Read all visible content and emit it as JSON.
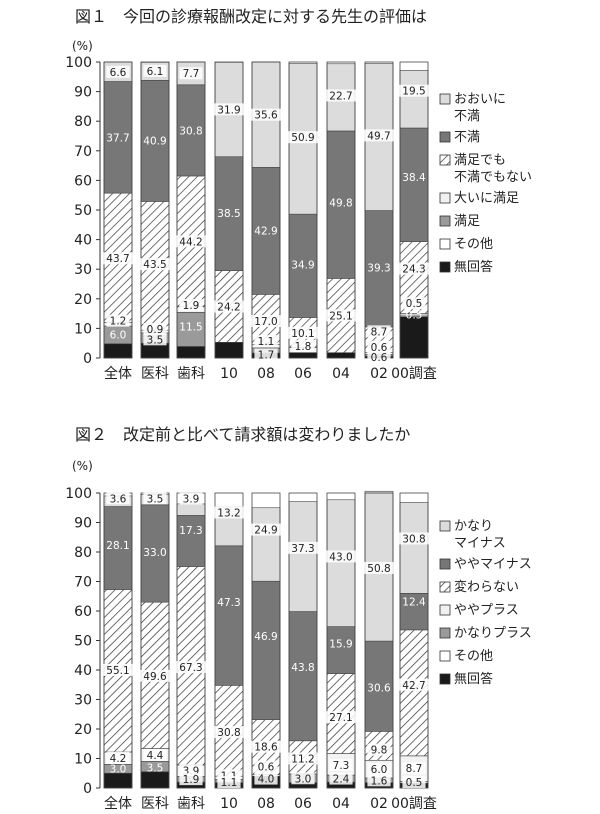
{
  "chart_data": [
    {
      "type": "bar",
      "title": "図１　今回の診療報酬改定に対する先生の評価は",
      "unit": "(%)",
      "categories": [
        "全体",
        "医科",
        "歯科",
        "10",
        "08",
        "06",
        "04",
        "02",
        "00調査"
      ],
      "ylim": [
        0,
        100
      ],
      "yticks": [
        0,
        10,
        20,
        30,
        40,
        50,
        60,
        70,
        80,
        90,
        100
      ],
      "legend_position": "right",
      "series": [
        {
          "name": "無回答",
          "color": "#1a1a1a",
          "pattern": "solid",
          "values": [
            4.8,
            5.0,
            3.9,
            5.3,
            1.7,
            1.8,
            1.8,
            0.6,
            14.0
          ]
        },
        {
          "name": "その他",
          "color": "#ffffff",
          "pattern": "solid",
          "values": [
            0,
            0,
            0,
            0,
            0,
            0,
            0,
            0,
            0.5
          ]
        },
        {
          "name": "満足",
          "color": "#9a9a9a",
          "pattern": "solid",
          "values": [
            6.0,
            3.5,
            11.5,
            0,
            1.7,
            0,
            0,
            0.6,
            0
          ]
        },
        {
          "name": "大いに満足",
          "color": "#f2f2f2",
          "pattern": "solid",
          "values": [
            1.2,
            0.9,
            1.9,
            0,
            1.1,
            1.8,
            0,
            0.6,
            0.5
          ]
        },
        {
          "name": "満足でも\n不満でもない",
          "color": "#ffffff",
          "pattern": "hatch",
          "values": [
            43.7,
            43.5,
            44.2,
            24.2,
            17.0,
            10.1,
            25.1,
            8.7,
            24.3
          ]
        },
        {
          "name": "不満",
          "color": "#777777",
          "pattern": "solid",
          "values": [
            37.7,
            40.9,
            30.8,
            38.5,
            42.9,
            34.9,
            49.8,
            39.3,
            38.4
          ]
        },
        {
          "name": "おおいに\n不満",
          "color": "#dcdcdc",
          "pattern": "solid",
          "values": [
            6.6,
            6.1,
            7.7,
            31.9,
            35.6,
            50.9,
            22.7,
            49.7,
            19.5
          ]
        }
      ],
      "data_labels": [
        {
          "bar": 0,
          "text": "6.6",
          "y": 96.7,
          "dark": false
        },
        {
          "bar": 1,
          "text": "6.1",
          "y": 97.0,
          "dark": false
        },
        {
          "bar": 2,
          "text": "7.7",
          "y": 96.2,
          "dark": false
        },
        {
          "bar": 3,
          "text": "31.9",
          "y": 84.0,
          "dark": false
        },
        {
          "bar": 4,
          "text": "35.6",
          "y": 82.2,
          "dark": false
        },
        {
          "bar": 5,
          "text": "50.9",
          "y": 74.6,
          "dark": false
        },
        {
          "bar": 6,
          "text": "22.7",
          "y": 88.7,
          "dark": false
        },
        {
          "bar": 7,
          "text": "49.7",
          "y": 75.2,
          "dark": false
        },
        {
          "bar": 8,
          "text": "19.5",
          "y": 90.3,
          "dark": false
        },
        {
          "bar": 0,
          "text": "37.7",
          "y": 74.5,
          "dark": true
        },
        {
          "bar": 1,
          "text": "40.9",
          "y": 73.4,
          "dark": true
        },
        {
          "bar": 2,
          "text": "30.8",
          "y": 76.9,
          "dark": true
        },
        {
          "bar": 3,
          "text": "38.5",
          "y": 49.0,
          "dark": true
        },
        {
          "bar": 4,
          "text": "42.9",
          "y": 43.0,
          "dark": true
        },
        {
          "bar": 5,
          "text": "34.9",
          "y": 31.6,
          "dark": true
        },
        {
          "bar": 6,
          "text": "49.8",
          "y": 52.6,
          "dark": true
        },
        {
          "bar": 7,
          "text": "39.3",
          "y": 30.5,
          "dark": true
        },
        {
          "bar": 8,
          "text": "38.4",
          "y": 61.2,
          "dark": true
        },
        {
          "bar": 0,
          "text": "43.7",
          "y": 33.7,
          "dark": false
        },
        {
          "bar": 1,
          "text": "43.5",
          "y": 31.7,
          "dark": false
        },
        {
          "bar": 2,
          "text": "44.2",
          "y": 39.4,
          "dark": false
        },
        {
          "bar": 3,
          "text": "24.2",
          "y": 17.4,
          "dark": false
        },
        {
          "bar": 4,
          "text": "17.0",
          "y": 12.5,
          "dark": false
        },
        {
          "bar": 5,
          "text": "10.1",
          "y": 8.5,
          "dark": false
        },
        {
          "bar": 6,
          "text": "25.1",
          "y": 14.4,
          "dark": false
        },
        {
          "bar": 7,
          "text": "8.7",
          "y": 9.0,
          "dark": false
        },
        {
          "bar": 8,
          "text": "24.3",
          "y": 30.2,
          "dark": false
        },
        {
          "bar": 0,
          "text": "1.2",
          "y": 12.6,
          "dark": false
        },
        {
          "bar": 1,
          "text": "0.9",
          "y": 9.8,
          "dark": false
        },
        {
          "bar": 2,
          "text": "1.9",
          "y": 17.9,
          "dark": false
        },
        {
          "bar": 4,
          "text": "1.1",
          "y": 5.7,
          "dark": false
        },
        {
          "bar": 5,
          "text": "1.8",
          "y": 4.1,
          "dark": false
        },
        {
          "bar": 7,
          "text": "0.6",
          "y": 3.8,
          "dark": false
        },
        {
          "bar": 8,
          "text": "0.5",
          "y": 18.5,
          "dark": false
        },
        {
          "bar": 0,
          "text": "6.0",
          "y": 8.0,
          "dark": true
        },
        {
          "bar": 1,
          "text": "3.5",
          "y": 6.3,
          "dark": false
        },
        {
          "bar": 2,
          "text": "11.5",
          "y": 10.6,
          "dark": true
        },
        {
          "bar": 4,
          "text": "1.7",
          "y": 1.2,
          "dark": false
        },
        {
          "bar": 7,
          "text": "0.6",
          "y": 0.3,
          "dark": false
        },
        {
          "bar": 8,
          "text": "0.5",
          "y": 14.7,
          "dark": true
        }
      ]
    },
    {
      "type": "bar",
      "title": "図２　改定前と比べて請求額は変わりましたか",
      "unit": "(%)",
      "categories": [
        "全体",
        "医科",
        "歯科",
        "10",
        "08",
        "06",
        "04",
        "02",
        "00調査"
      ],
      "ylim": [
        0,
        100
      ],
      "yticks": [
        0,
        10,
        20,
        30,
        40,
        50,
        60,
        70,
        80,
        90,
        100
      ],
      "legend_position": "right",
      "series": [
        {
          "name": "無回答",
          "color": "#1a1a1a",
          "pattern": "solid",
          "values": [
            5.0,
            5.5,
            2.0,
            1.8,
            4.0,
            1.8,
            2.0,
            1.8,
            1.7
          ]
        },
        {
          "name": "その他",
          "color": "#ffffff",
          "pattern": "solid",
          "values": [
            0,
            0,
            0,
            0,
            0,
            0,
            0,
            0,
            0.5
          ]
        },
        {
          "name": "かなりプラス",
          "color": "#9a9a9a",
          "pattern": "solid",
          "values": [
            3.0,
            3.5,
            1.9,
            1.1,
            0,
            3.0,
            2.4,
            1.6,
            0
          ]
        },
        {
          "name": "ややプラス",
          "color": "#f2f2f2",
          "pattern": "solid",
          "values": [
            4.2,
            4.4,
            3.9,
            1.1,
            0.6,
            0,
            7.3,
            6.0,
            8.7
          ]
        },
        {
          "name": "変わらない",
          "color": "#ffffff",
          "pattern": "hatch",
          "values": [
            55.1,
            49.6,
            67.3,
            30.8,
            18.6,
            11.2,
            27.1,
            9.8,
            42.7
          ]
        },
        {
          "name": "ややマイナス",
          "color": "#777777",
          "pattern": "solid",
          "values": [
            28.1,
            33.0,
            17.3,
            47.3,
            46.9,
            43.8,
            15.9,
            30.6,
            12.4
          ]
        },
        {
          "name": "かなり\nマイナス",
          "color": "#dcdcdc",
          "pattern": "solid",
          "values": [
            3.6,
            3.5,
            3.9,
            13.2,
            24.9,
            37.3,
            43.0,
            50.8,
            30.8
          ]
        }
      ],
      "data_labels": [
        {
          "bar": 0,
          "text": "3.6",
          "y": 98.2,
          "dark": false
        },
        {
          "bar": 1,
          "text": "3.5",
          "y": 98.2,
          "dark": false
        },
        {
          "bar": 2,
          "text": "3.9",
          "y": 98.1,
          "dark": false
        },
        {
          "bar": 3,
          "text": "13.2",
          "y": 93.4,
          "dark": false
        },
        {
          "bar": 4,
          "text": "24.9",
          "y": 87.6,
          "dark": false
        },
        {
          "bar": 5,
          "text": "37.3",
          "y": 81.4,
          "dark": false
        },
        {
          "bar": 6,
          "text": "43.0",
          "y": 78.5,
          "dark": false
        },
        {
          "bar": 7,
          "text": "50.8",
          "y": 74.6,
          "dark": false
        },
        {
          "bar": 8,
          "text": "30.8",
          "y": 84.6,
          "dark": false
        },
        {
          "bar": 0,
          "text": "28.1",
          "y": 82.4,
          "dark": true
        },
        {
          "bar": 1,
          "text": "33.0",
          "y": 80.0,
          "dark": true
        },
        {
          "bar": 2,
          "text": "17.3",
          "y": 87.5,
          "dark": true
        },
        {
          "bar": 3,
          "text": "47.3",
          "y": 63.1,
          "dark": true
        },
        {
          "bar": 4,
          "text": "46.9",
          "y": 51.6,
          "dark": true
        },
        {
          "bar": 5,
          "text": "43.8",
          "y": 41.0,
          "dark": true
        },
        {
          "bar": 6,
          "text": "15.9",
          "y": 49.0,
          "dark": true
        },
        {
          "bar": 7,
          "text": "30.6",
          "y": 34.0,
          "dark": true
        },
        {
          "bar": 8,
          "text": "12.4",
          "y": 63.2,
          "dark": true
        },
        {
          "bar": 0,
          "text": "55.1",
          "y": 40.0,
          "dark": false
        },
        {
          "bar": 1,
          "text": "49.6",
          "y": 38.0,
          "dark": false
        },
        {
          "bar": 2,
          "text": "67.3",
          "y": 41.0,
          "dark": false
        },
        {
          "bar": 3,
          "text": "30.8",
          "y": 19.0,
          "dark": false
        },
        {
          "bar": 4,
          "text": "18.6",
          "y": 14.0,
          "dark": false
        },
        {
          "bar": 5,
          "text": "11.2",
          "y": 10.0,
          "dark": false
        },
        {
          "bar": 6,
          "text": "27.1",
          "y": 24.0,
          "dark": false
        },
        {
          "bar": 7,
          "text": "9.8",
          "y": 13.0,
          "dark": false
        },
        {
          "bar": 8,
          "text": "42.7",
          "y": 35.0,
          "dark": false
        },
        {
          "bar": 0,
          "text": "4.2",
          "y": 10.2,
          "dark": false
        },
        {
          "bar": 1,
          "text": "4.4",
          "y": 11.2,
          "dark": false
        },
        {
          "bar": 2,
          "text": "3.9",
          "y": 6.0,
          "dark": false
        },
        {
          "bar": 3,
          "text": "1.1",
          "y": 4.3,
          "dark": false
        },
        {
          "bar": 4,
          "text": "0.6",
          "y": 7.3,
          "dark": false
        },
        {
          "bar": 6,
          "text": "7.3",
          "y": 7.8,
          "dark": false
        },
        {
          "bar": 7,
          "text": "6.0",
          "y": 6.4,
          "dark": false
        },
        {
          "bar": 8,
          "text": "8.7",
          "y": 6.7,
          "dark": false
        },
        {
          "bar": 0,
          "text": "3.0",
          "y": 6.6,
          "dark": true
        },
        {
          "bar": 1,
          "text": "3.5",
          "y": 7.0,
          "dark": true
        },
        {
          "bar": 2,
          "text": "1.9",
          "y": 3.0,
          "dark": false
        },
        {
          "bar": 3,
          "text": "1.1",
          "y": 2.0,
          "dark": false
        },
        {
          "bar": 4,
          "text": "4.0",
          "y": 3.2,
          "dark": false
        },
        {
          "bar": 5,
          "text": "3.0",
          "y": 3.3,
          "dark": false
        },
        {
          "bar": 6,
          "text": "2.4",
          "y": 3.2,
          "dark": false
        },
        {
          "bar": 7,
          "text": "1.6",
          "y": 2.6,
          "dark": false
        },
        {
          "bar": 8,
          "text": "0.5",
          "y": 2.0,
          "dark": false
        }
      ]
    }
  ]
}
